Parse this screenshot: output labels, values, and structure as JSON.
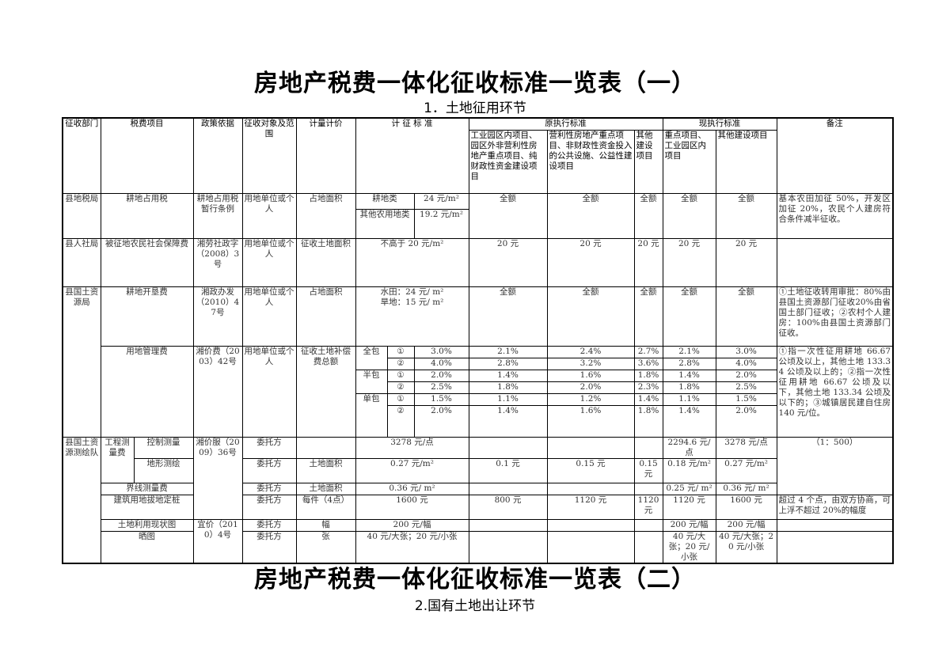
{
  "titles": {
    "main1": "房地产税费一体化征收标准一览表（一）",
    "sub1": "1．土地征用环节",
    "main2": "房地产税费一体化征收标准一览表（二）",
    "sub2": "2.国有土地出让环节"
  },
  "table": {
    "rows": [
      [
        "征收部门",
        "税费项目",
        "政策依据",
        "征收对象及范围",
        "计量计价",
        "计  征  标  准",
        "原执行标准",
        "现执行标准",
        "备注"
      ],
      [
        "工业园区内项目、园区外非营利性房地产重点项目、纯财政性资金建设项目",
        "营利性房地产重点项目、非财政性资金投入的公共设施、公益性建设项目",
        "其他建设项目",
        "重点项目、工业园区内项目",
        "其他建设项目"
      ],
      [
        "县地税局",
        "耕地占用税",
        "耕地占用税暂行条例",
        "用地单位或个人",
        "占地面积",
        "耕地类",
        "24 元/m²",
        "全额",
        "全额",
        "全额",
        "全额",
        "全额",
        "基本农田加征 50%，开发区加征 20%，农民个人建房符合条件减半征收。"
      ],
      [
        "其他农用地类",
        "19.2 元/m²"
      ],
      [
        "县人社局",
        "被征地农民社会保障费",
        "湘劳社政字（2008）3号",
        "用地单位或个人",
        "征收土地面积",
        "不高于 20 元/m²",
        "20 元",
        "20 元",
        "20 元",
        "20 元",
        "20 元",
        ""
      ],
      [
        "县国土资源局",
        "耕地开垦费",
        "湘政办发（2010）47号",
        "用地单位或个人",
        "占地面积",
        "水田：24 元/ m²\n旱地：15 元/ m²",
        "全额",
        "全额",
        "全额",
        "全额",
        "全额",
        "①土地征收转用审批：80%由县国土资源部门征收20%由省国土部门征收；②农村个人建房：100%由县国土资源部门征收。"
      ],
      [
        "用地管理费",
        "湘价费（2003）42号",
        "用地单位或个人",
        "征收土地补偿费总额",
        "全包",
        "①",
        "3.0%",
        "2.1%",
        "2.4%",
        "2.7%",
        "2.1%",
        "3.0%",
        "①指一次性征用耕地 66.67 公顷及以上，其他土地 133.34 公顷及以上的；②指一次性征用耕地 66.67 公顷及以下，其他土地 133.34 公顷及以下的；③城镇居民建自住房 140 元/位。"
      ],
      [
        "②",
        "4.0%",
        "2.8%",
        "3.2%",
        "3.6%",
        "2.8%",
        "4.0%"
      ],
      [
        "半包",
        "①",
        "2.0%",
        "1.4%",
        "1.6%",
        "1.8%",
        "1.4%",
        "2.0%"
      ],
      [
        "②",
        "2.5%",
        "1.8%",
        "2.0%",
        "2.3%",
        "1.8%",
        "2.5%"
      ],
      [
        "单包",
        "①",
        "1.5%",
        "1.1%",
        "1.2%",
        "1.4%",
        "1.1%",
        "1.5%"
      ],
      [
        "②",
        "2.0%",
        "1.4%",
        "1.6%",
        "1.8%",
        "1.4%",
        "2.0%"
      ],
      [
        "县国土资源测绘队",
        "工程测量费",
        "控制测量",
        "湘价服（2009）36号",
        "委托方",
        "",
        "3278 元/点",
        "",
        "",
        "",
        "2294.6 元/点",
        "3278 元/点",
        "（1：500）"
      ],
      [
        "地形测绘",
        "委托方",
        "土地面积",
        "0.27 元/m²",
        "0.1 元",
        "0.15 元",
        "0.15 元",
        "0.18 元/m²",
        "0.27 元/m²"
      ],
      [
        "界线测量费",
        "委托方",
        "土地面积",
        "0.36 元/ m²",
        "",
        "",
        "",
        "0.25 元/ m²",
        "0.36 元/ m²"
      ],
      [
        "建筑用地拔地定桩",
        "委托方",
        "每件（4点）",
        "1600 元",
        "800 元",
        "1120 元",
        "1120 元",
        "1120 元",
        "1600 元",
        "超过 4 个点，由双方协商，可上浮不超过 20%的幅度"
      ],
      [
        "土地利用现状图",
        "宜价（2010）4号",
        "委托方",
        "幅",
        "200 元/幅",
        "",
        "",
        "",
        "200 元/幅",
        "200 元/幅",
        ""
      ],
      [
        "晒图",
        "委托方",
        "张",
        "40 元/大张；20 元/小张",
        "",
        "",
        "",
        "40 元/大张；20 元/小张",
        "40 元/大张；20 元/小张",
        ""
      ]
    ]
  }
}
